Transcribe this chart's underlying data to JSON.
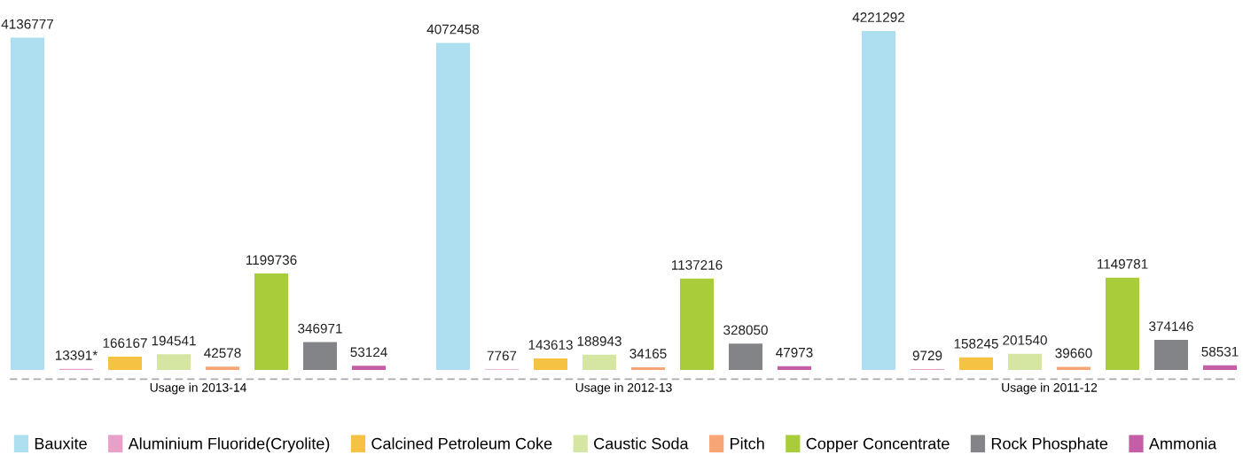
{
  "chart_data": {
    "type": "bar",
    "categories": [
      "Usage in 2013-14",
      "Usage in 2012-13",
      "Usage in 2011-12"
    ],
    "legend": "bottom",
    "series": [
      {
        "name": "Bauxite",
        "color": "#addff0",
        "values": [
          4136777,
          4072458,
          4221292
        ],
        "value_labels": [
          "4136777",
          "4072458",
          "4221292"
        ]
      },
      {
        "name": "Aluminium Fluoride(Cryolite)",
        "color": "#e8a0c8",
        "values": [
          13391,
          7767,
          9729
        ],
        "value_labels": [
          "13391*",
          "7767",
          "9729"
        ]
      },
      {
        "name": "Calcined Petroleum Coke",
        "color": "#f5c243",
        "values": [
          166167,
          143613,
          158245
        ],
        "value_labels": [
          "166167",
          "143613",
          "158245"
        ]
      },
      {
        "name": "Caustic Soda",
        "color": "#d5e6a2",
        "values": [
          194541,
          188943,
          201540
        ],
        "value_labels": [
          "194541",
          "188943",
          "201540"
        ]
      },
      {
        "name": "Pitch",
        "color": "#f7a576",
        "values": [
          42578,
          34165,
          39660
        ],
        "value_labels": [
          "42578",
          "34165",
          "39660"
        ]
      },
      {
        "name": "Copper Concentrate",
        "color": "#a8cc3a",
        "values": [
          1199736,
          1137216,
          1149781
        ],
        "value_labels": [
          "1199736",
          "1137216",
          "1149781"
        ]
      },
      {
        "name": "Rock Phosphate",
        "color": "#838487",
        "values": [
          346971,
          328050,
          374146
        ],
        "value_labels": [
          "346971",
          "328050",
          "374146"
        ]
      },
      {
        "name": "Ammonia",
        "color": "#c45ea6",
        "values": [
          53124,
          47973,
          58531
        ],
        "value_labels": [
          "53124",
          "47973",
          "58531"
        ]
      }
    ]
  }
}
